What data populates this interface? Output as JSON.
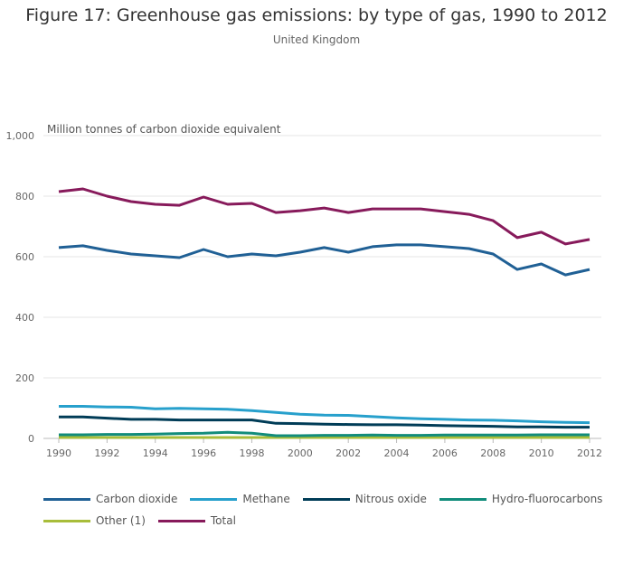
{
  "chart_data": {
    "type": "line",
    "title": "Figure 17: Greenhouse gas emissions: by type of gas, 1990 to 2012",
    "subtitle": "United Kingdom",
    "ylabel": "Million tonnes of carbon dioxide equivalent",
    "ylim": [
      0,
      1000
    ],
    "yticks": [
      "0",
      "200",
      "400",
      "600",
      "800",
      "1,000"
    ],
    "ytick_values": [
      0,
      200,
      400,
      600,
      800,
      1000
    ],
    "xticks": [
      "1990",
      "1992",
      "1994",
      "1996",
      "1998",
      "2000",
      "2002",
      "2004",
      "2006",
      "2008",
      "2010",
      "2012"
    ],
    "x": [
      1990,
      1991,
      1992,
      1993,
      1994,
      1995,
      1996,
      1997,
      1998,
      1999,
      2000,
      2001,
      2002,
      2003,
      2004,
      2005,
      2006,
      2007,
      2008,
      2009,
      2010,
      2011,
      2012
    ],
    "grid": true,
    "legend_placement": "bottom",
    "series": [
      {
        "name": "Carbon dioxide",
        "color": "#206095",
        "values": [
          630,
          636,
          621,
          609,
          603,
          597,
          624,
          600,
          609,
          603,
          615,
          630,
          615,
          633,
          639,
          639,
          633,
          627,
          609,
          558,
          576,
          540,
          558
        ]
      },
      {
        "name": "Methane",
        "color": "#27a0cc",
        "values": [
          106,
          106,
          104,
          103,
          98,
          99,
          98,
          96,
          92,
          86,
          80,
          77,
          76,
          72,
          68,
          65,
          63,
          61,
          60,
          58,
          55,
          53,
          52
        ]
      },
      {
        "name": "Nitrous oxide",
        "color": "#003c57",
        "values": [
          71,
          71,
          67,
          63,
          63,
          61,
          61,
          61,
          61,
          50,
          49,
          47,
          46,
          45,
          45,
          44,
          42,
          41,
          40,
          38,
          38,
          37,
          37
        ]
      },
      {
        "name": "Hydro-fluorocarbons",
        "color": "#118c7b",
        "values": [
          12,
          12,
          13,
          13,
          14,
          16,
          17,
          20,
          17,
          9,
          9,
          10,
          10,
          11,
          10,
          10,
          11,
          11,
          11,
          11,
          12,
          12,
          12
        ]
      },
      {
        "name": "Other (1)",
        "color": "#a8bd3a",
        "values": [
          3,
          3,
          3,
          3,
          3,
          3,
          3,
          3,
          3,
          3,
          3,
          3,
          3,
          3,
          3,
          3,
          3,
          3,
          3,
          3,
          3,
          3,
          3
        ]
      },
      {
        "name": "Total",
        "color": "#871a5b",
        "values": [
          815,
          824,
          800,
          782,
          773,
          770,
          797,
          773,
          776,
          746,
          752,
          761,
          746,
          758,
          758,
          758,
          749,
          740,
          719,
          663,
          681,
          642,
          657
        ]
      }
    ]
  }
}
